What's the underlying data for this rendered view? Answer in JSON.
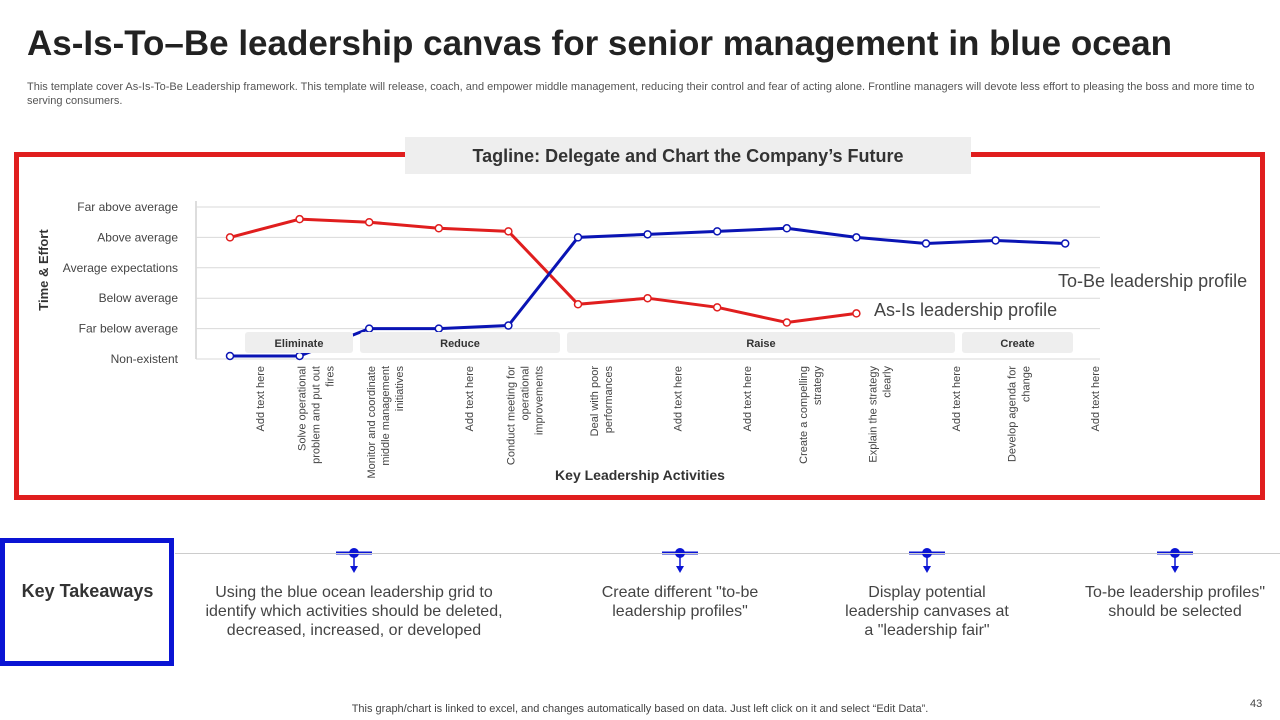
{
  "header": {
    "title": "As-Is-To–Be leadership canvas for senior management in blue ocean",
    "description": "This template cover As-Is-To-Be Leadership framework. This template will release, coach, and empower middle management, reducing their control and fear of acting alone. Frontline managers will devote less effort to pleasing the boss and more time to serving consumers."
  },
  "chart_data": {
    "type": "line",
    "title": "Tagline: Delegate and Chart the Company’s Future",
    "x_label": "Key Leadership Activities",
    "y_label": "Time & Effort",
    "categories": [
      "Add text here",
      "Solve operational problem and put out fires",
      "Monitor and coordinate middle management initiatives",
      "Add text here",
      "Conduct meeting for operational improvements",
      "Deal with poor performances",
      "Add text here",
      "Add text here",
      "Create a compelling strategy",
      "Explain the strategy clearly",
      "Add text here",
      "Develop agenda for change",
      "Add text here"
    ],
    "phases": [
      "Eliminate",
      "Reduce",
      "Raise",
      "Create"
    ],
    "ylim": [
      0,
      5
    ],
    "yticks": [
      {
        "value": 0,
        "label": "Non-existent"
      },
      {
        "value": 1,
        "label": "Far below average"
      },
      {
        "value": 2,
        "label": "Below average"
      },
      {
        "value": 3,
        "label": "Average expectations"
      },
      {
        "value": 4,
        "label": "Above average"
      },
      {
        "value": 5,
        "label": "Far above average"
      }
    ],
    "grid": true,
    "series": [
      {
        "name": "As-Is leadership profile",
        "color": "#e01e1e",
        "values": [
          4.0,
          4.6,
          4.5,
          4.3,
          4.2,
          1.8,
          2.0,
          1.7,
          1.2,
          1.5,
          null,
          null,
          null
        ]
      },
      {
        "name": "To-Be leadership profile",
        "color": "#0a14b4",
        "values": [
          0.1,
          0.1,
          1.0,
          1.0,
          1.1,
          4.0,
          4.1,
          4.2,
          4.3,
          4.0,
          3.8,
          3.9,
          3.8
        ]
      }
    ]
  },
  "takeaways": {
    "title": "Key Takeaways",
    "items": [
      "Using the blue ocean leadership grid to identify which activities should be deleted, decreased, increased, or developed",
      "Create different \"to-be leadership profiles\"",
      "Display potential leadership canvases at a \"leadership fair\"",
      "To-be leadership profiles\" should be selected"
    ]
  },
  "footer": {
    "note": "This graph/chart is linked to excel,  and changes automatically based on data. Just left click on it and select “Edit Data”.",
    "page": "43"
  }
}
